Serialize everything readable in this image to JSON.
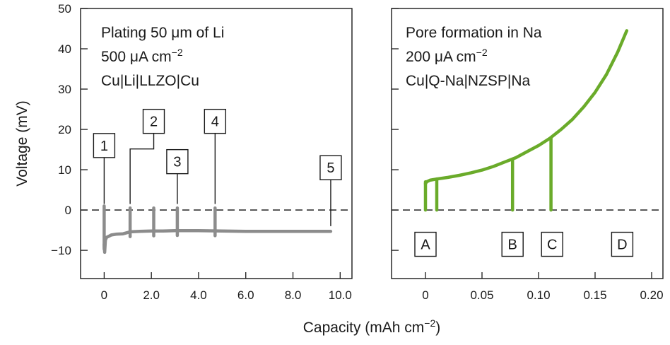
{
  "figure": {
    "ylabel": "Voltage (mV)",
    "xlabel": "Capacity (mAh cm",
    "xlabel_sup": "−2",
    "xlabel_end": ")"
  },
  "chart_data": [
    {
      "type": "line",
      "panel": "left",
      "annotation": [
        "Plating 50 μm of Li",
        "500 μA cm",
        "Cu|Li|LLZO|Cu"
      ],
      "annotation_sup": "−2",
      "xlim": [
        -1,
        10.5
      ],
      "ylim": [
        -17,
        50
      ],
      "xticks": [
        0,
        2,
        4,
        6,
        8,
        10
      ],
      "xtick_labels": [
        "0",
        "2.0",
        "4.0",
        "6.0",
        "8.0",
        "10.0"
      ],
      "yticks": [
        -10,
        0,
        10,
        20,
        30,
        40,
        50
      ],
      "ytick_labels": [
        "−10",
        "0",
        "10",
        "20",
        "30",
        "40",
        "50"
      ],
      "reference_line_y": 0,
      "line_color": "#8c8c8c",
      "series": [
        {
          "x": [
            0,
            0.02,
            0.05,
            0.1,
            0.2,
            0.3,
            0.5,
            0.8,
            1.1,
            1.5,
            2.0,
            2.5,
            3.0,
            3.5,
            4.0,
            5.0,
            6.0,
            7.0,
            8.0,
            9.0,
            9.6
          ],
          "y": [
            -8.5,
            -10.5,
            -7.5,
            -6.8,
            -6.5,
            -6.2,
            -6.0,
            -5.9,
            -5.4,
            -5.3,
            -5.2,
            -5.2,
            -5.1,
            -5.1,
            -5.1,
            -5.2,
            -5.3,
            -5.3,
            -5.3,
            -5.3,
            -5.3
          ]
        }
      ],
      "spikes": [
        {
          "x": 0,
          "y_top": 1
        },
        {
          "x": 1.1,
          "y_top": 0.5
        },
        {
          "x": 2.1,
          "y_top": 0.5
        },
        {
          "x": 3.1,
          "y_top": 0.5
        },
        {
          "x": 4.7,
          "y_top": 0.5
        }
      ],
      "markers": [
        {
          "label": "1",
          "box_x": 0,
          "box_y": 16,
          "anchor_x": 0,
          "anchor_y": 1.5
        },
        {
          "label": "2",
          "box_x": 2.1,
          "box_y": 22,
          "anchor_x": 1.1,
          "anchor_y": 1.5
        },
        {
          "label": "3",
          "box_x": 3.1,
          "box_y": 12,
          "anchor_x": 3.1,
          "anchor_y": 1.5
        },
        {
          "label": "4",
          "box_x": 4.7,
          "box_y": 22,
          "anchor_x": 4.7,
          "anchor_y": 1.5
        },
        {
          "label": "5",
          "box_x": 9.6,
          "box_y": 10.5,
          "anchor_x": 9.6,
          "anchor_y": -4
        }
      ]
    },
    {
      "type": "line",
      "panel": "right",
      "annotation": [
        "Pore formation in Na",
        "200 μA cm",
        "Cu|Q-Na|NZSP|Na"
      ],
      "annotation_sup": "−2",
      "xlim": [
        -0.03,
        0.21
      ],
      "ylim": [
        -17,
        50
      ],
      "xticks": [
        0,
        0.05,
        0.1,
        0.15,
        0.2
      ],
      "xtick_labels": [
        "0",
        "0.05",
        "0.10",
        "0.15",
        "0.20"
      ],
      "yticks": [
        -10,
        0,
        10,
        20,
        30,
        40,
        50
      ],
      "reference_line_y": 0,
      "line_color": "#6aab2a",
      "series": [
        {
          "x": [
            0,
            0.001,
            0.004,
            0.01,
            0.02,
            0.03,
            0.04,
            0.05,
            0.06,
            0.07,
            0.08,
            0.09,
            0.1,
            0.11,
            0.12,
            0.13,
            0.14,
            0.15,
            0.16,
            0.17,
            0.178
          ],
          "y": [
            6.5,
            7.0,
            7.4,
            7.7,
            8.1,
            8.6,
            9.2,
            9.9,
            10.8,
            11.9,
            13.0,
            14.5,
            16.0,
            17.8,
            20.0,
            22.5,
            25.6,
            29.2,
            33.6,
            39.2,
            44.5
          ]
        }
      ],
      "drops": [
        {
          "x": 0,
          "y_top": 7.0
        },
        {
          "x": 0.01,
          "y_top": 7.7
        },
        {
          "x": 0.077,
          "y_top": 12.5
        },
        {
          "x": 0.111,
          "y_top": 17.8
        }
      ],
      "markers": [
        {
          "label": "A",
          "x": 0,
          "y": -8.5
        },
        {
          "label": "B",
          "x": 0.077,
          "y": -8.5
        },
        {
          "label": "C",
          "x": 0.112,
          "y": -8.5
        },
        {
          "label": "D",
          "x": 0.174,
          "y": -8.5
        }
      ]
    }
  ]
}
